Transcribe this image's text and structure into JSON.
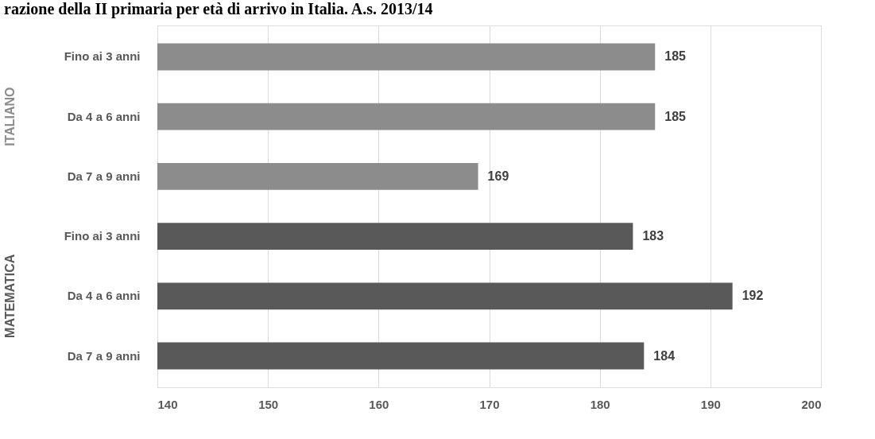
{
  "chart_data": {
    "type": "bar",
    "orientation": "horizontal",
    "title": "razione della II primaria per età di arrivo in Italia. A.s. 2013/14",
    "categories": [
      "Fino ai 3 anni",
      "Da 4 a 6 anni",
      "Da 7 a 9 anni",
      "Fino ai 3 anni",
      "Da 4 a 6 anni",
      "Da 7 a 9 anni"
    ],
    "series": [
      {
        "name": "ITALIANO",
        "color": "#8c8c8c",
        "values": [
          185,
          185,
          169,
          null,
          null,
          null
        ]
      },
      {
        "name": "MATEMATICA",
        "color": "#595959",
        "values": [
          null,
          null,
          null,
          183,
          192,
          184
        ]
      }
    ],
    "xlim": [
      140,
      200
    ],
    "xticks": [
      140,
      150,
      160,
      170,
      180,
      190,
      200
    ],
    "grid": "x",
    "data_labels": true
  }
}
